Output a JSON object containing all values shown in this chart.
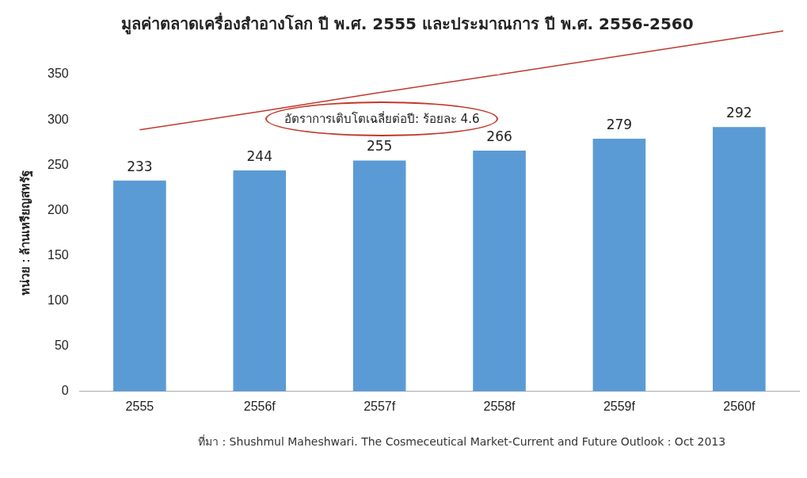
{
  "chart_data": {
    "type": "bar",
    "title": "มูลค่าตลาดเครื่องสำอางโลก ปี พ.ศ. 2555 และประมาณการ ปี พ.ศ. 2556-2560",
    "ylabel": "หน่วย : ล้านเหรียญสหรัฐ",
    "categories": [
      "2555",
      "2556f",
      "2557f",
      "2558f",
      "2559f",
      "2560f"
    ],
    "series": [
      {
        "color": "#5b9bd5",
        "values": [
          233,
          244,
          255,
          266,
          279,
          292
        ],
        "value_labels": [
          "233",
          "244",
          "255",
          "266",
          "279",
          "292"
        ]
      },
      {
        "type": "line",
        "color": "#c0392b",
        "values": [
          289,
          309,
          330,
          350,
          null,
          null
        ]
      }
    ],
    "grid": false,
    "ylim": [
      0,
      350
    ],
    "yticks": [
      0,
      50,
      100,
      150,
      200,
      250,
      300,
      350
    ],
    "marker": "none",
    "annotations": [
      "อัตราการเติบโตเฉลี่ยต่อปี: ร้อยละ 4.6",
      "ที่มา : Shushmul Maheshwari. The Cosmeceutical Market-Current and Future Outlook : Oct 2013"
    ]
  }
}
